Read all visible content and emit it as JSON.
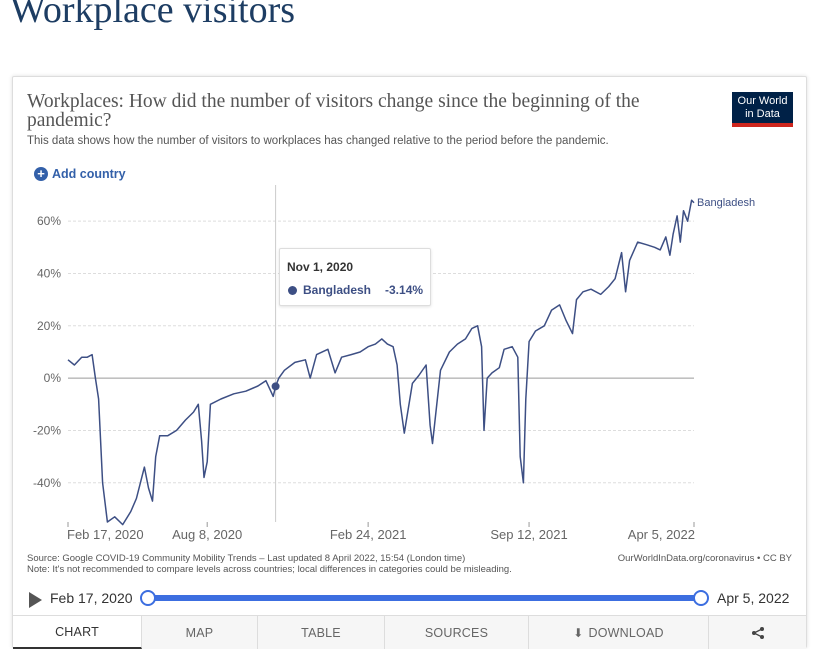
{
  "page": {
    "title": "Workplace visitors"
  },
  "chart": {
    "title": "Workplaces: How did the number of visitors change since the beginning of the pandemic?",
    "subtitle": "This data shows how the number of visitors to workplaces has changed relative to the period before the pandemic.",
    "logo": {
      "line1": "Our World",
      "line2": "in Data"
    },
    "add_country_label": "Add country",
    "tooltip": {
      "date": "Nov 1, 2020",
      "entity": "Bangladesh",
      "value": "-3.14%"
    },
    "source": "Source: Google COVID-19 Community Mobility Trends – Last updated 8 April 2022, 15:54 (London time)",
    "note": "Note: It's not recommended to compare levels across countries; local differences in categories could be misleading.",
    "credit": "OurWorldInData.org/coronavirus • CC BY"
  },
  "timeline": {
    "start_label": "Feb 17, 2020",
    "end_label": "Apr 5, 2022"
  },
  "tabs": [
    {
      "label": "CHART"
    },
    {
      "label": "MAP"
    },
    {
      "label": "TABLE"
    },
    {
      "label": "SOURCES"
    },
    {
      "label": "DOWNLOAD"
    }
  ],
  "colors": {
    "series": "#3d4f84",
    "accent": "#3c6ee0",
    "title": "#1d3d63"
  },
  "icons": {
    "add": "plus-circle-icon",
    "play": "play-icon",
    "download": "download-icon",
    "share": "share-icon"
  },
  "chart_data": {
    "type": "line",
    "ylabel": "",
    "xlabel": "",
    "ylim": [
      -55,
      70
    ],
    "yticks": [
      -40,
      -20,
      0,
      20,
      40,
      60
    ],
    "ytick_labels": [
      "-40%",
      "-20%",
      "0%",
      "20%",
      "40%",
      "60%"
    ],
    "xticks": [
      "2020-02-17",
      "2020-08-08",
      "2021-02-24",
      "2021-09-12",
      "2022-04-05"
    ],
    "xtick_labels": [
      "Feb 17, 2020",
      "Aug 8, 2020",
      "Feb 24, 2021",
      "Sep 12, 2021",
      "Apr 5, 2022"
    ],
    "grid": "horizontal",
    "highlight": {
      "x": "2020-11-01",
      "y": -3.14
    },
    "series": [
      {
        "name": "Bangladesh",
        "points": [
          [
            "2020-02-17",
            7
          ],
          [
            "2020-02-25",
            5
          ],
          [
            "2020-03-05",
            8
          ],
          [
            "2020-03-12",
            8
          ],
          [
            "2020-03-18",
            9
          ],
          [
            "2020-03-22",
            0
          ],
          [
            "2020-03-26",
            -8
          ],
          [
            "2020-03-31",
            -40
          ],
          [
            "2020-04-06",
            -55
          ],
          [
            "2020-04-15",
            -53
          ],
          [
            "2020-04-25",
            -56
          ],
          [
            "2020-05-05",
            -51
          ],
          [
            "2020-05-12",
            -46
          ],
          [
            "2020-05-17",
            -40
          ],
          [
            "2020-05-22",
            -34
          ],
          [
            "2020-05-27",
            -42
          ],
          [
            "2020-06-01",
            -47
          ],
          [
            "2020-06-05",
            -30
          ],
          [
            "2020-06-10",
            -22
          ],
          [
            "2020-06-20",
            -22
          ],
          [
            "2020-07-01",
            -20
          ],
          [
            "2020-07-12",
            -16
          ],
          [
            "2020-07-22",
            -13
          ],
          [
            "2020-07-28",
            -10
          ],
          [
            "2020-08-01",
            -24
          ],
          [
            "2020-08-04",
            -38
          ],
          [
            "2020-08-08",
            -32
          ],
          [
            "2020-08-12",
            -10
          ],
          [
            "2020-08-25",
            -8
          ],
          [
            "2020-09-10",
            -6
          ],
          [
            "2020-09-25",
            -5
          ],
          [
            "2020-10-10",
            -3
          ],
          [
            "2020-10-20",
            -1
          ],
          [
            "2020-10-26",
            -5
          ],
          [
            "2020-10-29",
            -7
          ],
          [
            "2020-11-01",
            -3.14
          ],
          [
            "2020-11-05",
            0
          ],
          [
            "2020-11-12",
            3
          ],
          [
            "2020-11-25",
            6
          ],
          [
            "2020-12-08",
            7
          ],
          [
            "2020-12-14",
            0
          ],
          [
            "2020-12-22",
            9
          ],
          [
            "2021-01-05",
            11
          ],
          [
            "2021-01-14",
            2
          ],
          [
            "2021-01-22",
            8
          ],
          [
            "2021-02-03",
            9
          ],
          [
            "2021-02-14",
            10
          ],
          [
            "2021-02-24",
            12
          ],
          [
            "2021-03-05",
            13
          ],
          [
            "2021-03-13",
            15
          ],
          [
            "2021-03-20",
            13
          ],
          [
            "2021-03-27",
            12
          ],
          [
            "2021-04-01",
            5
          ],
          [
            "2021-04-05",
            -10
          ],
          [
            "2021-04-10",
            -21
          ],
          [
            "2021-04-20",
            -2
          ],
          [
            "2021-04-28",
            1
          ],
          [
            "2021-05-07",
            5
          ],
          [
            "2021-05-12",
            -18
          ],
          [
            "2021-05-15",
            -25
          ],
          [
            "2021-05-25",
            3
          ],
          [
            "2021-06-05",
            10
          ],
          [
            "2021-06-15",
            13
          ],
          [
            "2021-06-25",
            15
          ],
          [
            "2021-07-03",
            19
          ],
          [
            "2021-07-10",
            20
          ],
          [
            "2021-07-15",
            12
          ],
          [
            "2021-07-18",
            -20
          ],
          [
            "2021-07-22",
            0
          ],
          [
            "2021-07-28",
            2
          ],
          [
            "2021-08-06",
            4
          ],
          [
            "2021-08-12",
            11
          ],
          [
            "2021-08-22",
            12
          ],
          [
            "2021-08-29",
            8
          ],
          [
            "2021-09-01",
            -30
          ],
          [
            "2021-09-05",
            -40
          ],
          [
            "2021-09-08",
            -8
          ],
          [
            "2021-09-12",
            14
          ],
          [
            "2021-09-20",
            18
          ],
          [
            "2021-10-01",
            20
          ],
          [
            "2021-10-10",
            26
          ],
          [
            "2021-10-20",
            28
          ],
          [
            "2021-10-28",
            22
          ],
          [
            "2021-11-05",
            17
          ],
          [
            "2021-11-10",
            30
          ],
          [
            "2021-11-18",
            33
          ],
          [
            "2021-11-28",
            34
          ],
          [
            "2021-12-10",
            32
          ],
          [
            "2021-12-20",
            35
          ],
          [
            "2021-12-28",
            38
          ],
          [
            "2022-01-05",
            48
          ],
          [
            "2022-01-10",
            33
          ],
          [
            "2022-01-15",
            45
          ],
          [
            "2022-01-25",
            52
          ],
          [
            "2022-02-05",
            51
          ],
          [
            "2022-02-15",
            50
          ],
          [
            "2022-02-22",
            49
          ],
          [
            "2022-03-01",
            54
          ],
          [
            "2022-03-06",
            47
          ],
          [
            "2022-03-10",
            55
          ],
          [
            "2022-03-15",
            62
          ],
          [
            "2022-03-19",
            52
          ],
          [
            "2022-03-23",
            64
          ],
          [
            "2022-03-28",
            60
          ],
          [
            "2022-04-02",
            68
          ],
          [
            "2022-04-05",
            67
          ]
        ]
      }
    ]
  }
}
